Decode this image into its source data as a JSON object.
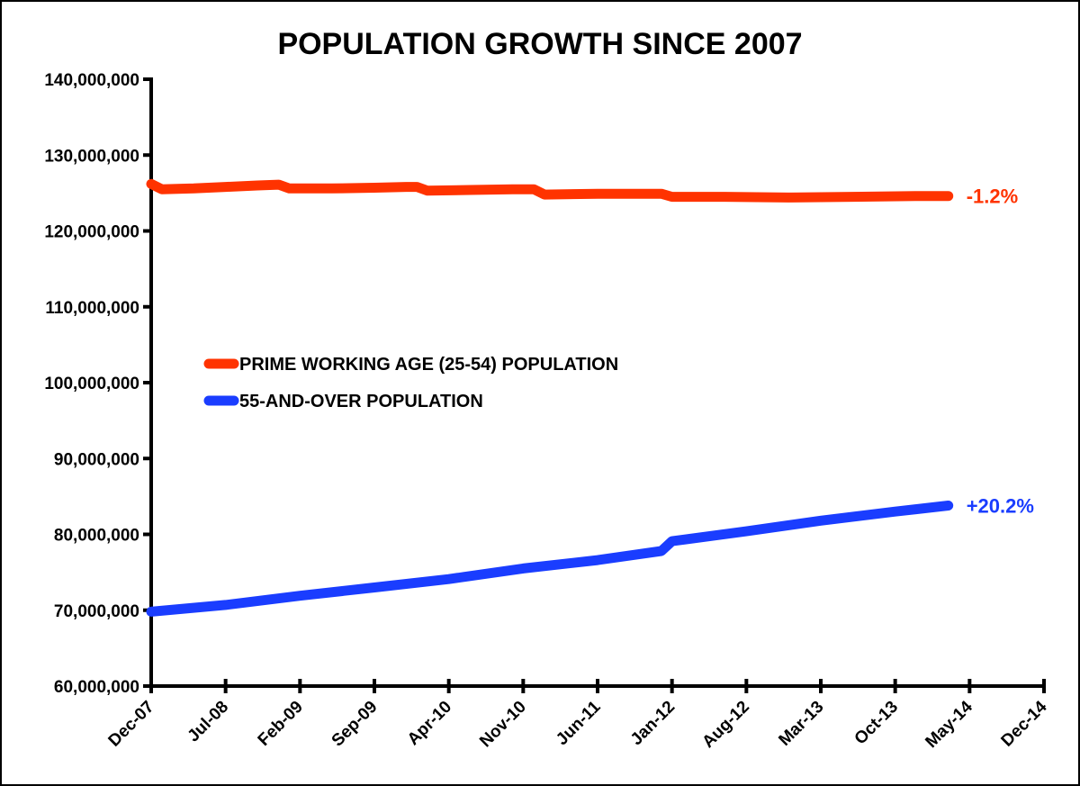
{
  "chart_data": {
    "type": "line",
    "title": "POPULATION GROWTH SINCE 2007",
    "xlabel": "",
    "ylabel": "",
    "ylim": [
      60000000,
      140000000
    ],
    "y_ticks": [
      60000000,
      70000000,
      80000000,
      90000000,
      100000000,
      110000000,
      120000000,
      130000000,
      140000000
    ],
    "y_tick_labels": [
      "60,000,000",
      "70,000,000",
      "80,000,000",
      "90,000,000",
      "100,000,000",
      "110,000,000",
      "120,000,000",
      "130,000,000",
      "140,000,000"
    ],
    "x_range": [
      "2007-12",
      "2014-12"
    ],
    "x_ticks": [
      "2007-12",
      "2008-07",
      "2009-02",
      "2009-09",
      "2010-04",
      "2010-11",
      "2011-06",
      "2012-01",
      "2012-08",
      "2013-03",
      "2013-10",
      "2014-05",
      "2014-12"
    ],
    "x_tick_labels": [
      "Dec-07",
      "Jul-08",
      "Feb-09",
      "Sep-09",
      "Apr-10",
      "Nov-10",
      "Jun-11",
      "Jan-12",
      "Aug-12",
      "Mar-13",
      "Oct-13",
      "May-14",
      "Dec-14"
    ],
    "grid": false,
    "legend_position": "middle-left",
    "series": [
      {
        "name": "PRIME WORKING AGE (25-54) POPULATION",
        "color": "#ff3300",
        "end_label": "-1.2%",
        "points": [
          [
            "2007-12",
            126200000
          ],
          [
            "2008-01",
            125500000
          ],
          [
            "2008-04",
            125600000
          ],
          [
            "2008-07",
            125800000
          ],
          [
            "2008-10",
            126000000
          ],
          [
            "2008-12",
            126100000
          ],
          [
            "2009-01",
            125600000
          ],
          [
            "2009-05",
            125600000
          ],
          [
            "2009-09",
            125700000
          ],
          [
            "2009-12",
            125800000
          ],
          [
            "2010-01",
            125800000
          ],
          [
            "2010-02",
            125300000
          ],
          [
            "2010-06",
            125400000
          ],
          [
            "2010-10",
            125500000
          ],
          [
            "2010-12",
            125500000
          ],
          [
            "2011-01",
            124800000
          ],
          [
            "2011-06",
            124900000
          ],
          [
            "2011-12",
            124900000
          ],
          [
            "2012-01",
            124500000
          ],
          [
            "2012-06",
            124500000
          ],
          [
            "2012-12",
            124400000
          ],
          [
            "2013-06",
            124500000
          ],
          [
            "2013-12",
            124600000
          ],
          [
            "2014-03",
            124600000
          ]
        ]
      },
      {
        "name": "55-AND-OVER POPULATION",
        "color": "#1a3dff",
        "end_label": "+20.2%",
        "points": [
          [
            "2007-12",
            69800000
          ],
          [
            "2008-07",
            70700000
          ],
          [
            "2009-02",
            71900000
          ],
          [
            "2009-09",
            73000000
          ],
          [
            "2010-04",
            74100000
          ],
          [
            "2010-11",
            75500000
          ],
          [
            "2011-06",
            76600000
          ],
          [
            "2011-12",
            77800000
          ],
          [
            "2012-01",
            79100000
          ],
          [
            "2012-08",
            80400000
          ],
          [
            "2013-03",
            81800000
          ],
          [
            "2013-10",
            83000000
          ],
          [
            "2014-03",
            83800000
          ]
        ]
      }
    ]
  }
}
